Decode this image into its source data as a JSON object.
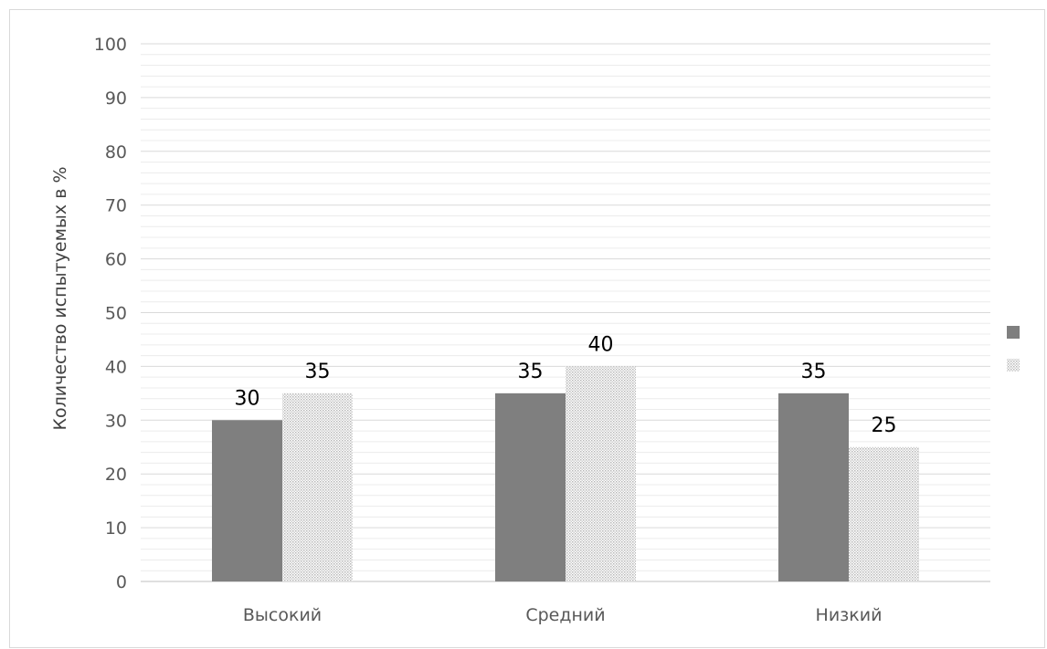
{
  "chart_data": {
    "type": "bar",
    "title": "",
    "ylabel": "Количество испытуемых в %",
    "xlabel": "",
    "categories": [
      "Высокий",
      "Средний",
      "Низкий"
    ],
    "ylim": [
      0,
      100
    ],
    "yticks": [
      0,
      10,
      20,
      30,
      40,
      50,
      60,
      70,
      80,
      90,
      100
    ],
    "minor_gridlines": true,
    "legend_position": "right",
    "series": [
      {
        "values": [
          30,
          35,
          35
        ],
        "color": "#7f7f7f",
        "fill": "solid"
      },
      {
        "values": [
          35,
          40,
          25
        ],
        "color": "#d0d0d0",
        "fill": "dotted-pattern"
      }
    ]
  }
}
